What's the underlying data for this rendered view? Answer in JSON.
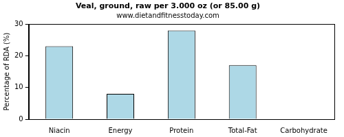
{
  "chart_data": {
    "type": "bar",
    "title": "Veal, ground, raw per 3.000 oz (or 85.00 g)",
    "subtitle": "www.dietandfitnesstoday.com",
    "y_label": "Percentage of RDA (%)",
    "categories": [
      "Niacin",
      "Energy",
      "Protein",
      "Total-Fat",
      "Carbohydrate"
    ],
    "values": [
      23,
      8,
      28,
      17,
      0
    ],
    "color": "#add8e6",
    "ylim": [
      0,
      30
    ],
    "yticks": [
      0,
      10,
      20,
      30
    ],
    "grid": false
  }
}
